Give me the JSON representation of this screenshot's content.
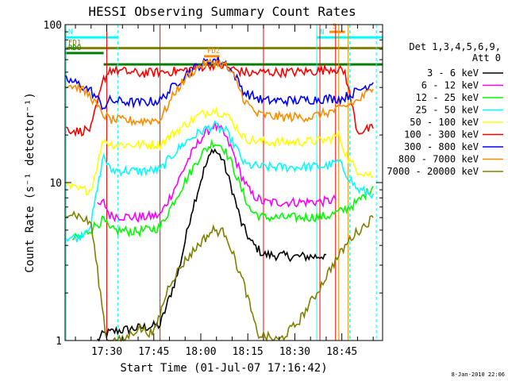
{
  "chart_data": {
    "type": "line",
    "title": "HESSI Observing Summary Count Rates",
    "xlabel": "Start Time (01-Jul-07 17:16:42)",
    "ylabel": "Count Rate (s⁻¹ detector⁻¹)",
    "y_scale": "log",
    "ylim": [
      1,
      100
    ],
    "xlim": [
      "17:16:42",
      "18:58:00"
    ],
    "x_ticks": [
      "17:30",
      "17:45",
      "18:00",
      "18:15",
      "18:30",
      "18:45"
    ],
    "y_ticks": [
      "1",
      "10",
      "100"
    ],
    "legend": {
      "placement": "right",
      "title_line1": "Det 1,3,4,5,6,9,",
      "title_line2": "Att 0"
    },
    "series": [
      {
        "name": "3 - 6 keV",
        "color": "#000000",
        "points": [
          [
            "17:27",
            1.0
          ],
          [
            "17:29",
            1.1
          ],
          [
            "17:33",
            1.15
          ],
          [
            "17:40",
            1.2
          ],
          [
            "17:47",
            1.25
          ],
          [
            "17:53",
            2.8
          ],
          [
            "17:57",
            6.5
          ],
          [
            "18:01",
            12
          ],
          [
            "18:04",
            16.5
          ],
          [
            "18:07",
            14
          ],
          [
            "18:10",
            9
          ],
          [
            "18:13",
            5.5
          ],
          [
            "18:16",
            4.2
          ],
          [
            "18:20",
            3.5
          ],
          [
            "18:30",
            3.4
          ],
          [
            "18:37",
            3.4
          ],
          [
            "18:40",
            3.5
          ]
        ]
      },
      {
        "name": "6 - 12 keV",
        "color": "#ff00ff",
        "points": [
          [
            "17:27",
            7.0
          ],
          [
            "17:29",
            7.5
          ],
          [
            "17:31",
            6.2
          ],
          [
            "17:40",
            6.0
          ],
          [
            "17:47",
            6.2
          ],
          [
            "17:52",
            9.5
          ],
          [
            "17:56",
            14
          ],
          [
            "18:00",
            19
          ],
          [
            "18:04",
            23
          ],
          [
            "18:07",
            21
          ],
          [
            "18:10",
            16
          ],
          [
            "18:13",
            11
          ],
          [
            "18:16",
            8.5
          ],
          [
            "18:20",
            7.5
          ],
          [
            "18:30",
            7.5
          ],
          [
            "18:40",
            7.6
          ],
          [
            "18:43",
            7.8
          ]
        ]
      },
      {
        "name": "12 - 25 keV",
        "color": "#00ff00",
        "points": [
          [
            "17:19",
            4.4
          ],
          [
            "17:22",
            4.5
          ],
          [
            "17:26",
            5.3
          ],
          [
            "17:29",
            5.8
          ],
          [
            "17:31",
            5.0
          ],
          [
            "17:40",
            4.9
          ],
          [
            "17:47",
            5.2
          ],
          [
            "17:52",
            8.0
          ],
          [
            "17:56",
            11
          ],
          [
            "18:00",
            15
          ],
          [
            "18:04",
            18
          ],
          [
            "18:07",
            17
          ],
          [
            "18:10",
            13
          ],
          [
            "18:13",
            9
          ],
          [
            "18:16",
            6.6
          ],
          [
            "18:20",
            6.0
          ],
          [
            "18:30",
            6.0
          ],
          [
            "18:40",
            6.1
          ],
          [
            "18:45",
            6.6
          ],
          [
            "18:50",
            7.5
          ],
          [
            "18:55",
            9.5
          ]
        ]
      },
      {
        "name": "25 - 50 keV",
        "color": "#00ffff",
        "points": [
          [
            "17:17",
            4.5
          ],
          [
            "17:21",
            4.5
          ],
          [
            "17:25",
            5.5
          ],
          [
            "17:29",
            15
          ],
          [
            "17:31",
            12
          ],
          [
            "17:40",
            11.8
          ],
          [
            "17:47",
            12
          ],
          [
            "17:51",
            15
          ],
          [
            "17:55",
            18
          ],
          [
            "18:00",
            21
          ],
          [
            "18:04",
            23
          ],
          [
            "18:08",
            21
          ],
          [
            "18:11",
            17
          ],
          [
            "18:14",
            13
          ],
          [
            "18:20",
            12.5
          ],
          [
            "18:30",
            12.5
          ],
          [
            "18:40",
            12.7
          ],
          [
            "18:44",
            13.5
          ],
          [
            "18:47",
            11
          ],
          [
            "18:50",
            9
          ],
          [
            "18:55",
            8.5
          ]
        ]
      },
      {
        "name": "50 - 100 keV",
        "color": "#ffff00",
        "points": [
          [
            "17:17",
            9.5
          ],
          [
            "17:21",
            9.0
          ],
          [
            "17:25",
            9.0
          ],
          [
            "17:29",
            19
          ],
          [
            "17:31",
            17.5
          ],
          [
            "17:40",
            17.3
          ],
          [
            "17:47",
            17.5
          ],
          [
            "17:52",
            21
          ],
          [
            "17:56",
            24
          ],
          [
            "18:00",
            27
          ],
          [
            "18:04",
            29
          ],
          [
            "18:08",
            27
          ],
          [
            "18:11",
            23
          ],
          [
            "18:14",
            19
          ],
          [
            "18:20",
            18
          ],
          [
            "18:30",
            18
          ],
          [
            "18:40",
            18.5
          ],
          [
            "18:44",
            20
          ],
          [
            "18:47",
            14
          ],
          [
            "18:50",
            12
          ],
          [
            "18:55",
            11
          ]
        ]
      },
      {
        "name": "100 - 300 keV",
        "color": "#ff0000",
        "points": [
          [
            "17:17",
            22
          ],
          [
            "17:21",
            21
          ],
          [
            "17:25",
            22
          ],
          [
            "17:29",
            45
          ],
          [
            "17:31",
            52
          ],
          [
            "17:40",
            49
          ],
          [
            "17:47",
            50
          ],
          [
            "17:54",
            51
          ],
          [
            "18:00",
            54
          ],
          [
            "18:04",
            56
          ],
          [
            "18:08",
            54
          ],
          [
            "18:12",
            51
          ],
          [
            "18:16",
            49
          ],
          [
            "18:20",
            50
          ],
          [
            "18:30",
            50
          ],
          [
            "18:38",
            51
          ],
          [
            "18:42",
            53
          ],
          [
            "18:46",
            50
          ],
          [
            "18:50",
            21
          ],
          [
            "18:55",
            22
          ]
        ]
      },
      {
        "name": "300 - 800 keV",
        "color": "#0000ff",
        "points": [
          [
            "17:17",
            45
          ],
          [
            "17:21",
            42
          ],
          [
            "17:25",
            38
          ],
          [
            "17:29",
            30
          ],
          [
            "17:31",
            33
          ],
          [
            "17:40",
            32
          ],
          [
            "17:47",
            33
          ],
          [
            "17:52",
            42
          ],
          [
            "17:56",
            50
          ],
          [
            "18:00",
            56
          ],
          [
            "18:04",
            60
          ],
          [
            "18:08",
            57
          ],
          [
            "18:11",
            47
          ],
          [
            "18:14",
            37
          ],
          [
            "18:20",
            33
          ],
          [
            "18:30",
            33
          ],
          [
            "18:40",
            34
          ],
          [
            "18:45",
            34
          ],
          [
            "18:50",
            38
          ],
          [
            "18:55",
            43
          ]
        ]
      },
      {
        "name": "800 - 7000 keV",
        "color": "#ff8c00",
        "points": [
          [
            "17:17",
            42
          ],
          [
            "17:21",
            40
          ],
          [
            "17:25",
            35
          ],
          [
            "17:28",
            28
          ],
          [
            "17:31",
            25
          ],
          [
            "17:40",
            24.5
          ],
          [
            "17:47",
            25
          ],
          [
            "17:52",
            38
          ],
          [
            "17:56",
            48
          ],
          [
            "18:00",
            55
          ],
          [
            "18:04",
            58
          ],
          [
            "18:08",
            55
          ],
          [
            "18:11",
            45
          ],
          [
            "18:14",
            33
          ],
          [
            "18:18",
            27
          ],
          [
            "18:25",
            26
          ],
          [
            "18:35",
            26
          ],
          [
            "18:44",
            29
          ],
          [
            "18:50",
            33
          ],
          [
            "18:55",
            39
          ]
        ]
      },
      {
        "name": "7000 - 20000 keV",
        "color": "#808000",
        "points": [
          [
            "17:17",
            6.5
          ],
          [
            "17:20",
            6.3
          ],
          [
            "17:25",
            5.5
          ],
          [
            "17:30",
            1.0
          ],
          [
            "17:35",
            1.0
          ],
          [
            "17:40",
            1.2
          ],
          [
            "17:45",
            1.1
          ],
          [
            "17:50",
            2.3
          ],
          [
            "17:55",
            3.2
          ],
          [
            "18:00",
            4.2
          ],
          [
            "18:04",
            5.0
          ],
          [
            "18:08",
            4.8
          ],
          [
            "18:11",
            3.2
          ],
          [
            "18:14",
            2.2
          ],
          [
            "18:18",
            1.1
          ],
          [
            "18:25",
            1.0
          ],
          [
            "18:31",
            1.3
          ],
          [
            "18:37",
            2.0
          ],
          [
            "18:42",
            3.0
          ],
          [
            "18:48",
            4.5
          ],
          [
            "18:55",
            6.0
          ]
        ]
      }
    ],
    "annotations": [
      {
        "label": "N",
        "color": "#00ffff",
        "start": "17:16:42",
        "end": "17:33:30",
        "level": 83
      },
      {
        "label": "N",
        "color": "#00ffff",
        "start": "18:37:00",
        "end": "18:58:00",
        "level": 83
      },
      {
        "label": "S",
        "color": "#ff8c00",
        "start": "18:41:00",
        "end": "18:46:00",
        "level": 90
      },
      {
        "label": "FD1",
        "color": "#808000",
        "start": "17:16:42",
        "end": "18:58:00",
        "level": 71
      },
      {
        "label": "FD2",
        "color": "#ff8c00",
        "start": "18:01:00",
        "end": "18:06:00",
        "level": 63
      },
      {
        "label": "RDO",
        "color": "#008000",
        "start": "17:16:42",
        "end": "17:29:00",
        "level": 66
      },
      {
        "label": "",
        "color": "#008000",
        "start": "17:29:00",
        "end": "18:58:00",
        "level": 56
      }
    ],
    "vertical_markers": [
      {
        "time": "17:30",
        "color": "#ff0000"
      },
      {
        "time": "17:47",
        "color": "#ff0000"
      },
      {
        "time": "18:20",
        "color": "#ff0000"
      },
      {
        "time": "18:38",
        "color": "#ff0000"
      },
      {
        "time": "18:43",
        "color": "#ff0000"
      },
      {
        "time": "18:44",
        "color": "#ff8c00"
      },
      {
        "time": "18:47",
        "color": "#ff8c00"
      },
      {
        "time": "17:33:30",
        "color": "#00ffff",
        "dashed": true
      },
      {
        "time": "18:47:30",
        "color": "#00ffff",
        "dashed": true
      },
      {
        "time": "18:56",
        "color": "#00ffff",
        "dashed": true
      },
      {
        "time": "18:37",
        "color": "#00ffff",
        "dashed": false
      },
      {
        "time": "17:17",
        "color": "#00ffff",
        "dashed": false
      }
    ],
    "footer_date": "8-Jan-2010 22:06"
  }
}
